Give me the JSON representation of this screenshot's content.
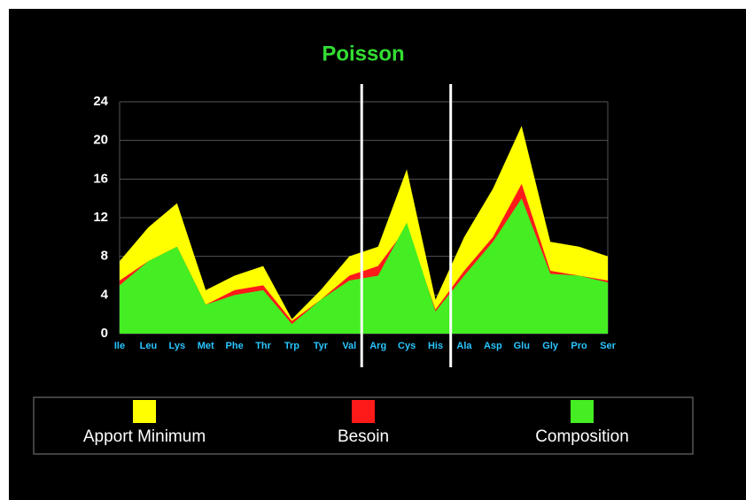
{
  "chart_data": {
    "type": "area",
    "title": "Poisson",
    "title_color": "#33dd33",
    "categories": [
      "Ile",
      "Leu",
      "Lys",
      "Met",
      "Phe",
      "Thr",
      "Trp",
      "Tyr",
      "Val",
      "Arg",
      "Cys",
      "His",
      "Ala",
      "Asp",
      "Glu",
      "Gly",
      "Pro",
      "Ser"
    ],
    "series": [
      {
        "name": "Apport Minimum",
        "color": "#ffff00",
        "values": [
          7.5,
          11,
          13.5,
          4.5,
          6,
          7,
          1.5,
          4.5,
          8,
          9,
          17,
          3.5,
          10,
          15,
          21.5,
          9.5,
          9,
          8
        ]
      },
      {
        "name": "Besoin",
        "color": "#ff1a1a",
        "values": [
          5.5,
          7.5,
          9,
          3,
          4.5,
          5,
          1.3,
          3.5,
          6,
          7,
          11,
          2.5,
          6.5,
          10,
          15.5,
          6.5,
          6,
          5.5
        ]
      },
      {
        "name": "Composition",
        "color": "#44ee22",
        "values": [
          5,
          7.5,
          9,
          3,
          4,
          4.5,
          1,
          3.5,
          5.5,
          6,
          11.5,
          2.3,
          6,
          9.5,
          14,
          6.2,
          6,
          5.3
        ]
      }
    ],
    "ylim": [
      0,
      24
    ],
    "yticks": [
      0,
      4,
      8,
      12,
      16,
      20,
      24
    ],
    "grid": true,
    "legend": "bottom"
  }
}
